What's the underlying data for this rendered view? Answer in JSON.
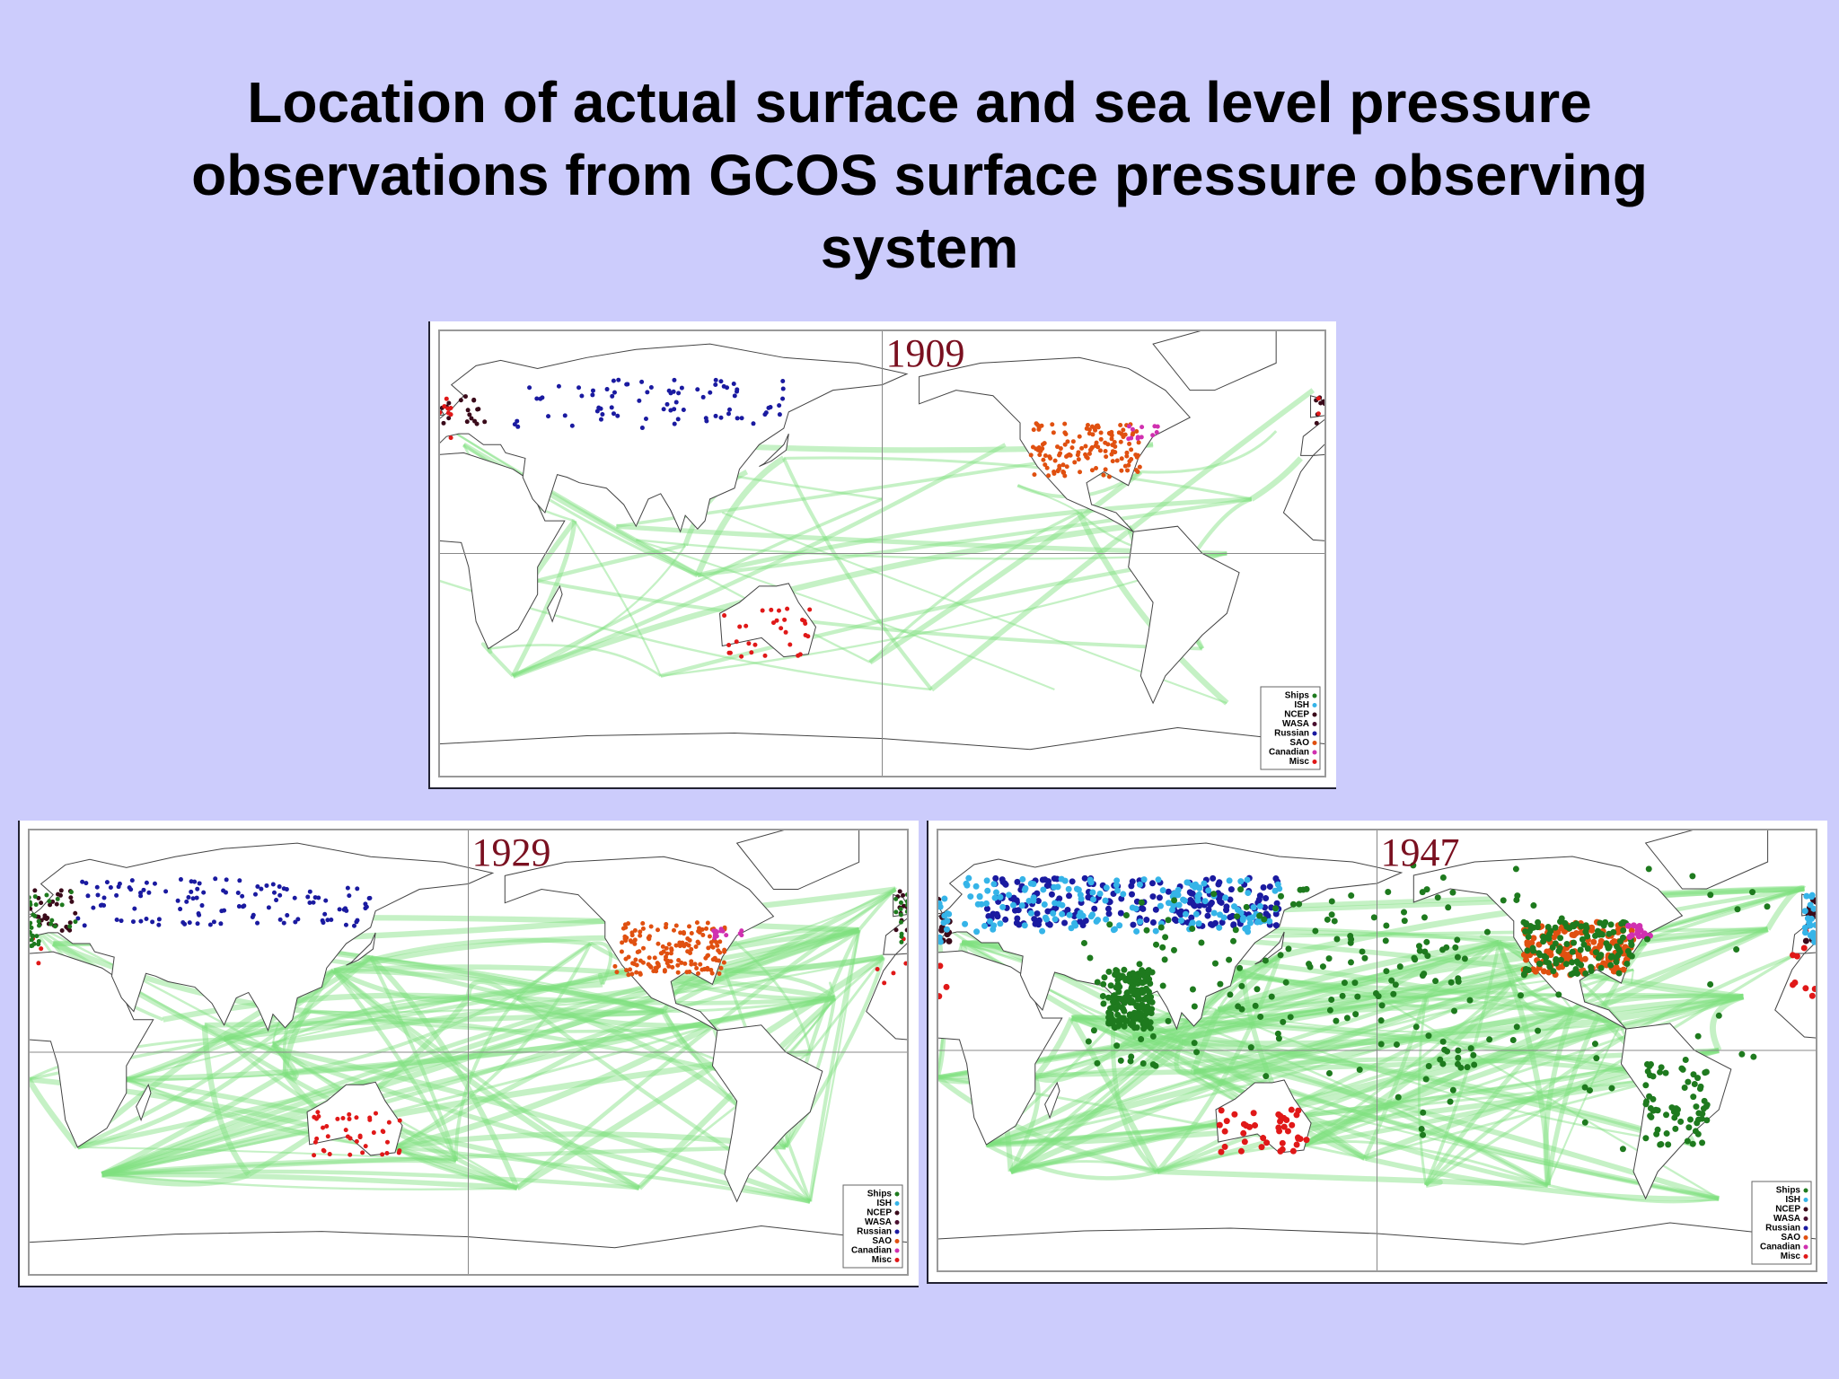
{
  "title": "Location of actual surface and sea level pressure observations from GCOS surface pressure observing system",
  "maps": [
    {
      "year": "1909",
      "legend": [
        "Ships",
        "ISH",
        "NCEP",
        "WASA",
        "Russian",
        "SAO",
        "Canadian",
        "Misc"
      ]
    },
    {
      "year": "1929",
      "legend": [
        "Ships",
        "ISH",
        "NCEP",
        "WASA",
        "Russian",
        "SAO",
        "Canadian",
        "Misc"
      ]
    },
    {
      "year": "1947",
      "legend": [
        "Ships",
        "ISH",
        "NCEP",
        "WASA",
        "Russian",
        "SAO",
        "Canadian",
        "Misc"
      ]
    }
  ]
}
